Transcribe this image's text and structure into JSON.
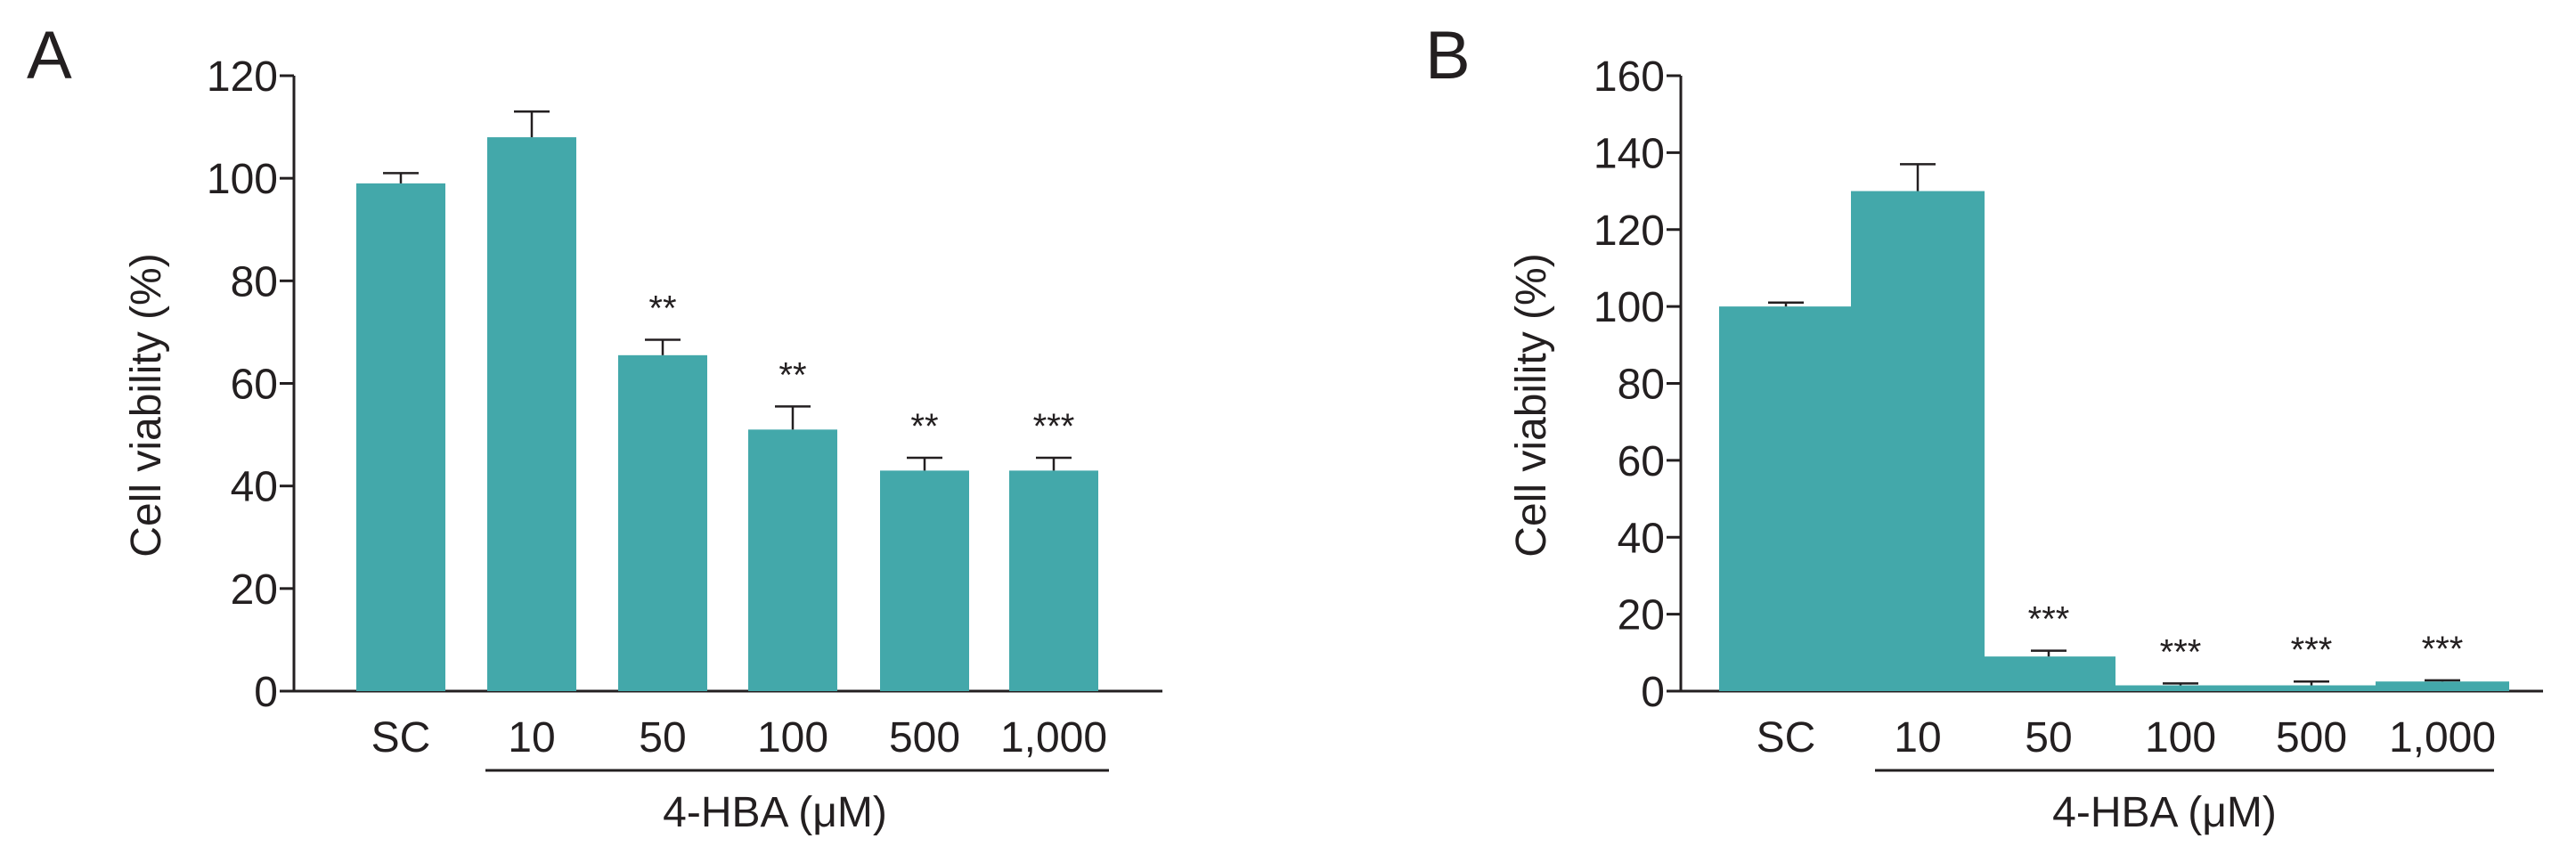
{
  "colors": {
    "bar": "#43a8aa",
    "ink": "#231f20",
    "background": "#ffffff"
  },
  "chart_data": [
    {
      "panel": "A",
      "type": "bar",
      "categories": [
        "SC",
        "10",
        "50",
        "100",
        "500",
        "1,000"
      ],
      "values": [
        99,
        108,
        65.5,
        51,
        43,
        43
      ],
      "errors": [
        2,
        5,
        3,
        4.5,
        2.5,
        2.5
      ],
      "significance": [
        "",
        "",
        "**",
        "**",
        "**",
        "***"
      ],
      "ylabel": "Cell viability (%)",
      "group_label": "4-HBA (μM)",
      "group_categories": [
        "10",
        "50",
        "100",
        "500",
        "1,000"
      ],
      "ylim": [
        0,
        120
      ],
      "yticks": [
        0,
        20,
        40,
        60,
        80,
        100,
        120
      ],
      "grid": false
    },
    {
      "panel": "B",
      "type": "bar",
      "categories": [
        "SC",
        "10",
        "50",
        "100",
        "500",
        "1,000"
      ],
      "values": [
        100,
        130,
        9,
        1.5,
        1.5,
        2.5
      ],
      "errors": [
        1,
        7,
        1.5,
        0.5,
        1,
        0.3
      ],
      "significance": [
        "",
        "",
        "***",
        "***",
        "***",
        "***"
      ],
      "ylabel": "Cell viability (%)",
      "group_label": "4-HBA (μM)",
      "group_categories": [
        "10",
        "50",
        "100",
        "500",
        "1,000"
      ],
      "ylim": [
        0,
        160
      ],
      "yticks": [
        0,
        20,
        40,
        60,
        80,
        100,
        120,
        140,
        160
      ],
      "grid": false
    }
  ]
}
